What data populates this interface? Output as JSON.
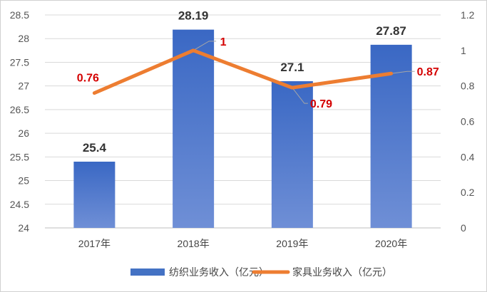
{
  "chart_data": {
    "type": "bar",
    "categories": [
      "2017年",
      "2018年",
      "2019年",
      "2020年"
    ],
    "series": [
      {
        "name": "纺织业务收入（亿元）",
        "type": "bar",
        "axis": "left",
        "values": [
          25.4,
          28.19,
          27.1,
          27.87
        ],
        "labels": [
          "25.4",
          "28.19",
          "27.1",
          "27.87"
        ],
        "color": "#4472C4"
      },
      {
        "name": "家具业务收入（亿元）",
        "type": "line",
        "axis": "right",
        "values": [
          0.76,
          1,
          0.79,
          0.87
        ],
        "labels": [
          "0.76",
          "1",
          "0.79",
          "0.87"
        ],
        "color": "#ED7D31",
        "label_color": "#D40000"
      }
    ],
    "ylim_left": [
      24,
      28.5
    ],
    "yticks_left": [
      "24",
      "24.5",
      "25",
      "25.5",
      "26",
      "26.5",
      "27",
      "27.5",
      "28",
      "28.5"
    ],
    "ylim_right": [
      0,
      1.2
    ],
    "yticks_right": [
      "0",
      "0.2",
      "0.4",
      "0.6",
      "0.8",
      "1",
      "1.2"
    ],
    "title": "",
    "xlabel": "",
    "ylabel": "",
    "grid": true,
    "legend": "bottom"
  }
}
